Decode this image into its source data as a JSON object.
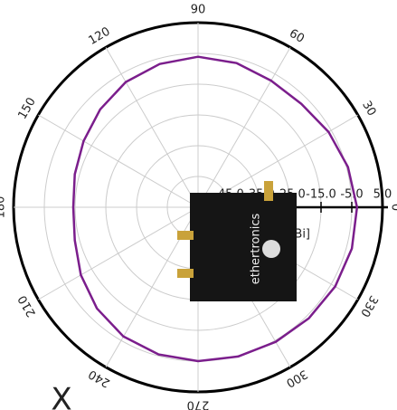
{
  "chart_data": {
    "type": "polar",
    "theta": [
      0,
      15,
      30,
      45,
      60,
      75,
      90,
      105,
      120,
      135,
      150,
      165,
      180,
      195,
      210,
      225,
      240,
      255,
      270,
      285,
      300,
      315,
      330,
      345
    ],
    "series": [
      {
        "color": "#7b1e8c",
        "values": [
          -3.3,
          -4.5,
          -6,
          -7.5,
          -7.5,
          -6.5,
          -6.1,
          -6.8,
          -8,
          -10,
          -12,
          -13.5,
          -14.4,
          -13.5,
          -11,
          -8.5,
          -6.5,
          -5.5,
          -5,
          -4.8,
          -4.5,
          -4,
          -3.5,
          -3.2
        ]
      }
    ],
    "thetaticks": [
      0,
      30,
      60,
      90,
      120,
      150,
      180,
      210,
      240,
      270,
      300,
      330
    ],
    "rlim": [
      -55,
      5
    ],
    "rticks": [
      {
        "value": -45,
        "label": "-45.0"
      },
      {
        "value": -35,
        "label": "-35.0"
      },
      {
        "value": -25,
        "label": "-25.0"
      },
      {
        "value": -15,
        "label": "-15.0"
      },
      {
        "value": -5,
        "label": "-5.0"
      },
      {
        "value": 5,
        "label": "5.0"
      }
    ],
    "r_label": "Gain [dBi]",
    "board_label": "ethertronics",
    "corner_text": "X"
  }
}
